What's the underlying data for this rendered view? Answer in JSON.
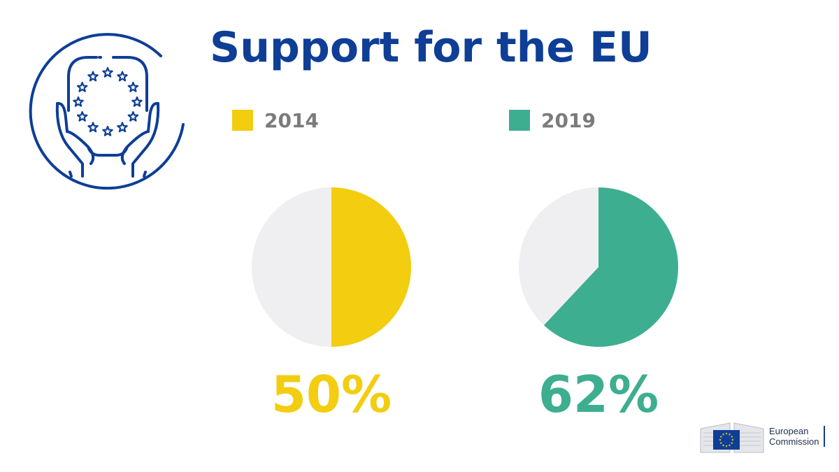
{
  "title": "Support for the EU",
  "colors": {
    "title": "#0e3e96",
    "legend_text": "#7b7b7b",
    "pie_background": "#efeff1",
    "eu_blue": "#0e3e96"
  },
  "icons": {
    "emblem": "hands-holding-eu-stars-icon",
    "logo": "european-commission-logo"
  },
  "chart_data": {
    "type": "pie",
    "title": "Support for the EU",
    "unit": "%",
    "series": [
      {
        "name": "2014",
        "value": 50,
        "label": "50%",
        "color": "#f2cd10"
      },
      {
        "name": "2019",
        "value": 62,
        "label": "62%",
        "color": "#3eae90"
      }
    ]
  },
  "footer": {
    "logo_line1": "European",
    "logo_line2": "Commission"
  }
}
